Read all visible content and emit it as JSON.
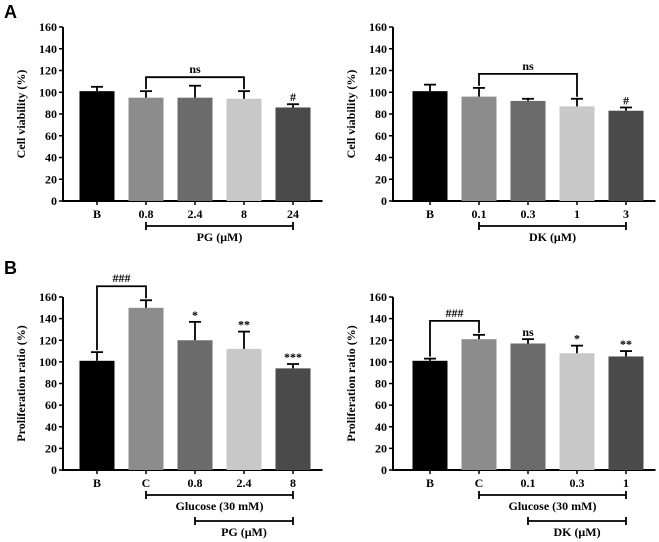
{
  "figure": {
    "panel_labels": [
      "A",
      "B"
    ]
  },
  "chart_data": [
    {
      "id": "A-PG",
      "panel": "A",
      "type": "bar",
      "ylabel": "Cell viability (%)",
      "xlabel": "",
      "ylim": [
        0,
        160
      ],
      "yticks": [
        0,
        20,
        40,
        60,
        80,
        100,
        120,
        140,
        160
      ],
      "grid": false,
      "categories": [
        "B",
        "0.8",
        "2.4",
        "8",
        "24"
      ],
      "values": [
        101,
        95,
        95,
        94,
        86
      ],
      "errors": [
        4,
        6,
        11,
        7,
        3
      ],
      "colors": [
        "#000000",
        "#8c8c8c",
        "#6b6b6b",
        "#c8c8c8",
        "#4a4a4a"
      ],
      "annotations": [
        {
          "index": 4,
          "text": "#"
        }
      ],
      "brackets": [
        {
          "from": 1,
          "to": 3,
          "text": "ns"
        }
      ],
      "group_lines": [
        {
          "from": 1,
          "to": 4,
          "text": "PG (μM)"
        }
      ]
    },
    {
      "id": "A-DK",
      "panel": "A",
      "type": "bar",
      "ylabel": "Cell viability (%)",
      "xlabel": "",
      "ylim": [
        0,
        160
      ],
      "yticks": [
        0,
        20,
        40,
        60,
        80,
        100,
        120,
        140,
        160
      ],
      "grid": false,
      "categories": [
        "B",
        "0.1",
        "0.3",
        "1",
        "3"
      ],
      "values": [
        101,
        96,
        92,
        87,
        83
      ],
      "errors": [
        6,
        8,
        2,
        7,
        3
      ],
      "colors": [
        "#000000",
        "#8c8c8c",
        "#6b6b6b",
        "#c8c8c8",
        "#4a4a4a"
      ],
      "annotations": [
        {
          "index": 4,
          "text": "#"
        }
      ],
      "brackets": [
        {
          "from": 1,
          "to": 3,
          "text": "ns"
        }
      ],
      "group_lines": [
        {
          "from": 1,
          "to": 4,
          "text": "DK (μM)"
        }
      ]
    },
    {
      "id": "B-PG",
      "panel": "B",
      "type": "bar",
      "ylabel": "Proliferation ratio (%)",
      "xlabel": "",
      "ylim": [
        0,
        160
      ],
      "yticks": [
        0,
        20,
        40,
        60,
        80,
        100,
        120,
        140,
        160
      ],
      "grid": false,
      "categories": [
        "B",
        "C",
        "0.8",
        "2.4",
        "8"
      ],
      "values": [
        101,
        150,
        120,
        112,
        94
      ],
      "errors": [
        8,
        7,
        17,
        16,
        4
      ],
      "colors": [
        "#000000",
        "#8c8c8c",
        "#6b6b6b",
        "#c8c8c8",
        "#4a4a4a"
      ],
      "annotations": [
        {
          "index": 2,
          "text": "*"
        },
        {
          "index": 3,
          "text": "**"
        },
        {
          "index": 4,
          "text": "***"
        }
      ],
      "brackets": [
        {
          "from": 0,
          "to": 1,
          "text": "###"
        }
      ],
      "group_lines": [
        {
          "from": 1,
          "to": 4,
          "text": "Glucose (30 mM)"
        },
        {
          "from": 2,
          "to": 4,
          "text": "PG (μM)"
        }
      ]
    },
    {
      "id": "B-DK",
      "panel": "B",
      "type": "bar",
      "ylabel": "Proliferation ratio (%)",
      "xlabel": "",
      "ylim": [
        0,
        160
      ],
      "yticks": [
        0,
        20,
        40,
        60,
        80,
        100,
        120,
        140,
        160
      ],
      "grid": false,
      "categories": [
        "B",
        "C",
        "0.1",
        "0.3",
        "1"
      ],
      "values": [
        101,
        121,
        117,
        108,
        105
      ],
      "errors": [
        2,
        4,
        4,
        7,
        5
      ],
      "colors": [
        "#000000",
        "#8c8c8c",
        "#6b6b6b",
        "#c8c8c8",
        "#4a4a4a"
      ],
      "annotations": [
        {
          "index": 2,
          "text": "ns"
        },
        {
          "index": 3,
          "text": "*"
        },
        {
          "index": 4,
          "text": "**"
        }
      ],
      "brackets": [
        {
          "from": 0,
          "to": 1,
          "text": "###"
        }
      ],
      "group_lines": [
        {
          "from": 1,
          "to": 4,
          "text": "Glucose (30 mM)"
        },
        {
          "from": 2,
          "to": 4,
          "text": "DK (μM)"
        }
      ]
    }
  ]
}
